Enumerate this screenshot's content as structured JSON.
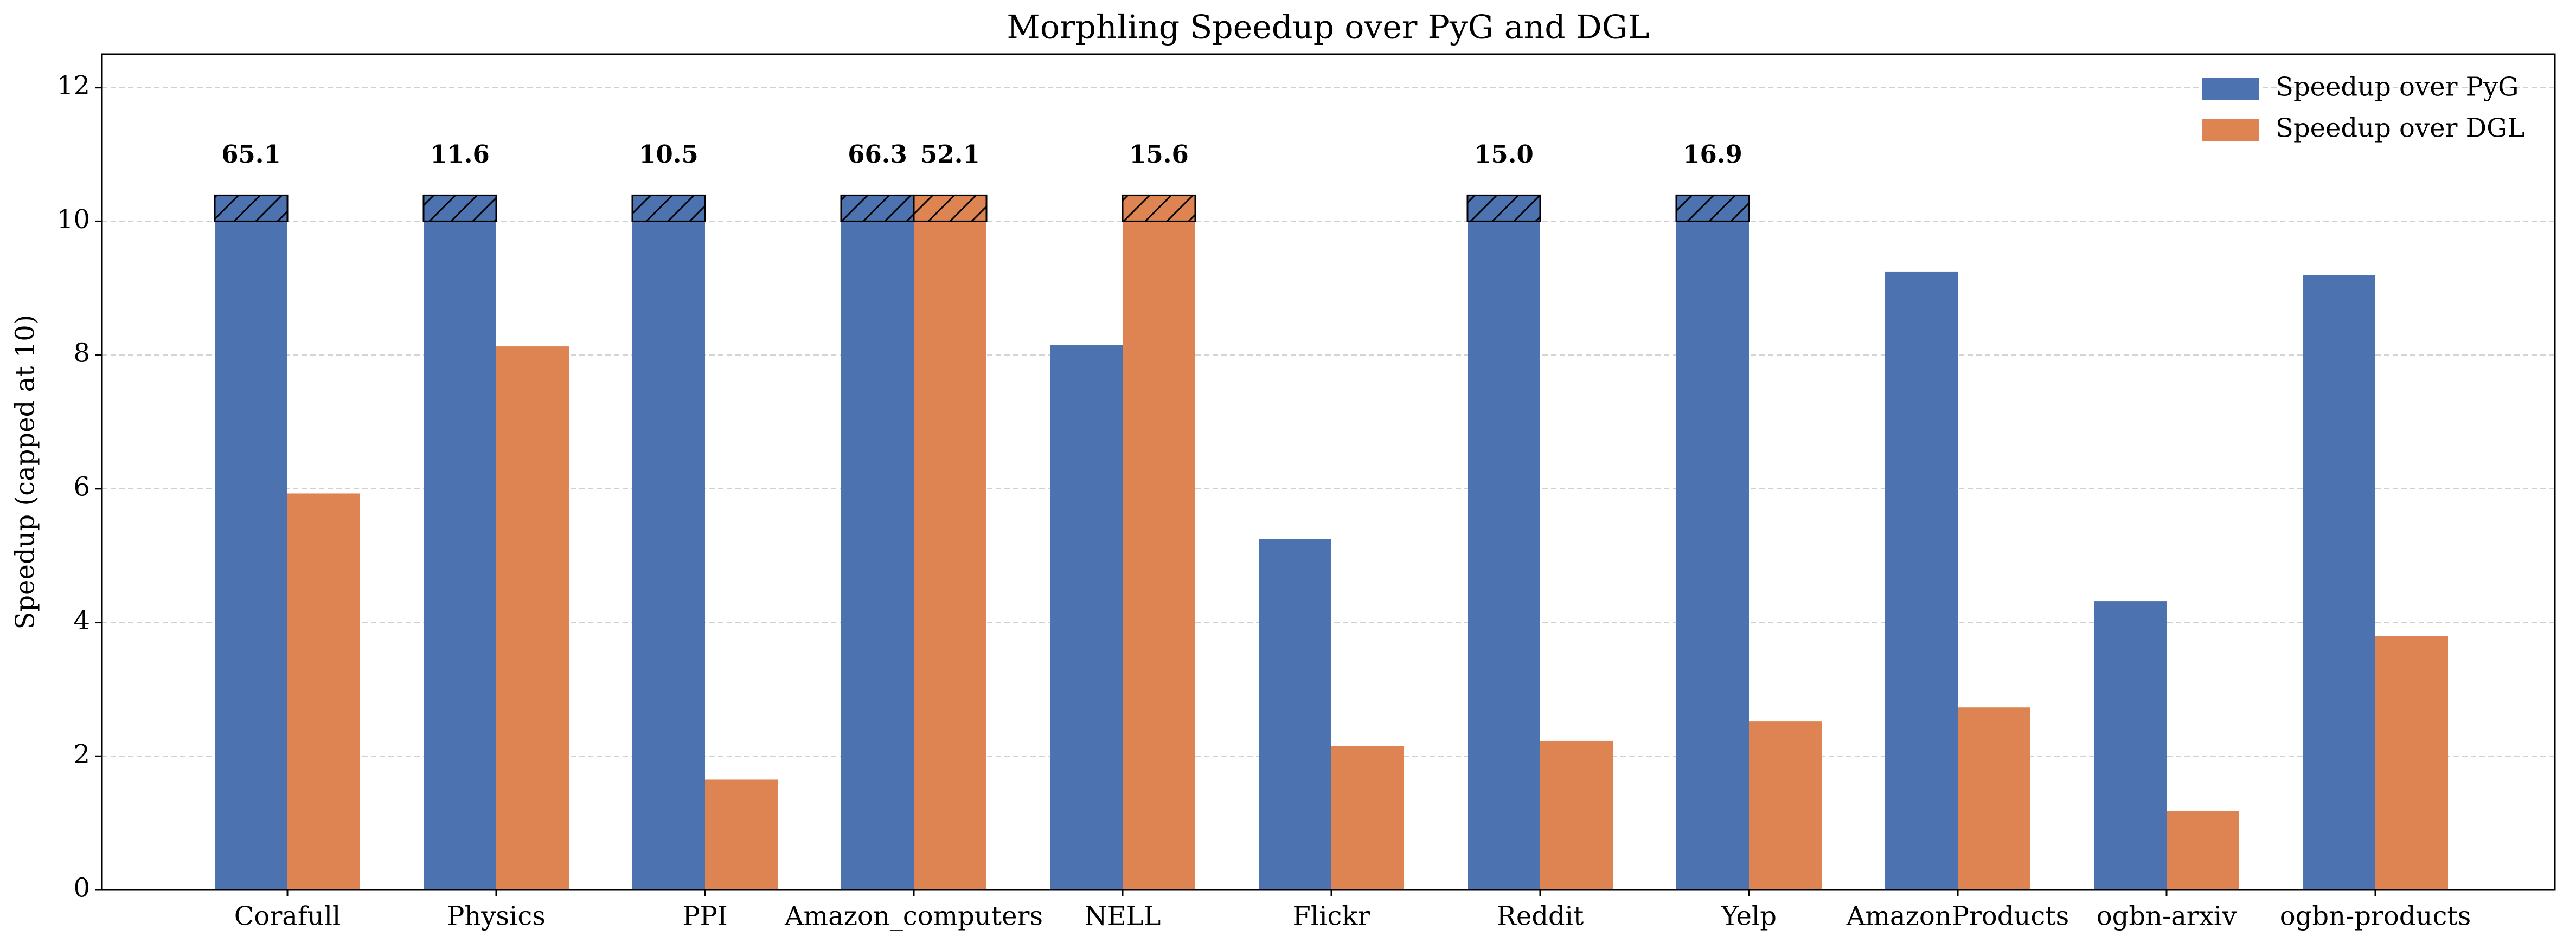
{
  "chart_data": {
    "type": "bar",
    "title": "Morphling Speedup over PyG and DGL",
    "y_label": "Speedup (capped at 10)",
    "categories": [
      "Corafull",
      "Physics",
      "PPI",
      "Amazon_computers",
      "NELL",
      "Flickr",
      "Reddit",
      "Yelp",
      "AmazonProducts",
      "ogbn-arxiv",
      "ogbn-products"
    ],
    "series": [
      {
        "name": "Speedup over PyG",
        "color": "#4c72b0",
        "values": [
          65.1,
          11.6,
          10.5,
          66.3,
          8.15,
          5.25,
          15.0,
          16.9,
          9.25,
          4.32,
          9.2
        ],
        "value_labels": [
          "65.1",
          "11.6",
          "10.5",
          "66.3",
          null,
          null,
          "15.0",
          "16.9",
          null,
          null,
          null
        ]
      },
      {
        "name": "Speedup over DGL",
        "color": "#dd8452",
        "values": [
          5.93,
          8.13,
          1.65,
          52.1,
          15.6,
          2.15,
          2.23,
          2.52,
          2.73,
          1.18,
          3.8
        ],
        "value_labels": [
          null,
          null,
          null,
          "52.1",
          "15.6",
          null,
          null,
          null,
          null,
          null,
          null
        ]
      }
    ],
    "cap": 10,
    "ylim": [
      0,
      12.5
    ],
    "yticks": [
      0,
      2,
      4,
      6,
      8,
      10,
      12
    ],
    "grid": true,
    "legend": "upper right"
  }
}
